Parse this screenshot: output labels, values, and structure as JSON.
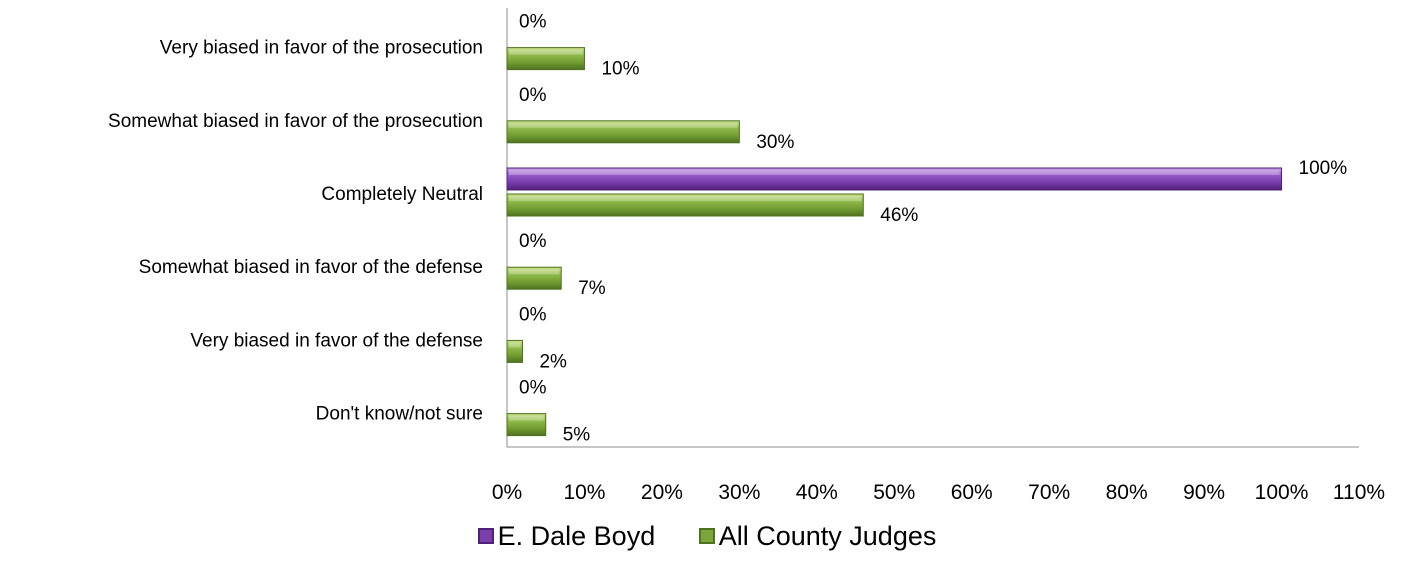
{
  "chart_data": {
    "type": "bar",
    "orientation": "horizontal",
    "categories": [
      "Very biased in favor of the prosecution",
      "Somewhat biased in favor of the prosecution",
      "Completely Neutral",
      "Somewhat biased in favor of the defense",
      "Very biased in favor of the defense",
      "Don't know/not sure"
    ],
    "series": [
      {
        "name": "E. Dale Boyd",
        "color": "#7a3fa8",
        "values": [
          0,
          0,
          100,
          0,
          0,
          0
        ],
        "labels": [
          "0%",
          "0%",
          "100%",
          "0%",
          "0%",
          "0%"
        ]
      },
      {
        "name": "All County Judges",
        "color": "#7aa63a",
        "values": [
          10,
          30,
          46,
          7,
          2,
          5
        ],
        "labels": [
          "10%",
          "30%",
          "46%",
          "7%",
          "2%",
          "5%"
        ]
      }
    ],
    "xlim": [
      0,
      110
    ],
    "xticks": [
      "0%",
      "10%",
      "20%",
      "30%",
      "40%",
      "50%",
      "60%",
      "70%",
      "80%",
      "90%",
      "100%",
      "110%"
    ],
    "title": "",
    "xlabel": "",
    "ylabel": "",
    "grid": false,
    "legend_position": "bottom"
  }
}
